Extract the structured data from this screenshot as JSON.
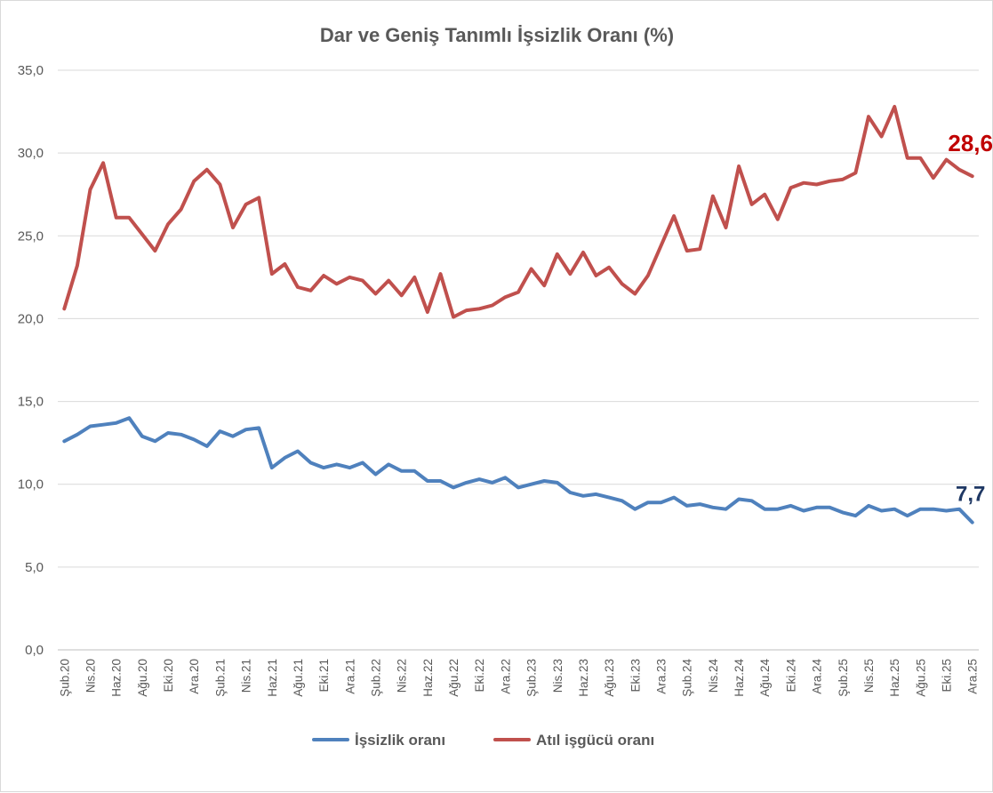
{
  "chart_data": {
    "type": "line",
    "title": "Dar ve Geniş Tanımlı İşsizlik Oranı (%)",
    "xlabel": "",
    "ylabel": "",
    "ylim": [
      0,
      35
    ],
    "yticks": [
      "0,0",
      "5,0",
      "10,0",
      "15,0",
      "20,0",
      "25,0",
      "30,0",
      "35,0"
    ],
    "grid": true,
    "legend_position": "bottom",
    "x": [
      "Şub.20",
      "Mar.20",
      "Nis.20",
      "May.20",
      "Haz.20",
      "Tem.20",
      "Ağu.20",
      "Eyl.20",
      "Eki.20",
      "Kas.20",
      "Ara.20",
      "Oca.21",
      "Şub.21",
      "Mar.21",
      "Nis.21",
      "May.21",
      "Haz.21",
      "Tem.21",
      "Ağu.21",
      "Eyl.21",
      "Eki.21",
      "Kas.21",
      "Ara.21",
      "Oca.22",
      "Şub.22",
      "Mar.22",
      "Nis.22",
      "May.22",
      "Haz.22",
      "Tem.22",
      "Ağu.22",
      "Eyl.22",
      "Eki.22",
      "Kas.22",
      "Ara.22",
      "Oca.23",
      "Şub.23",
      "Mar.23",
      "Nis.23",
      "May.23",
      "Haz.23",
      "Tem.23",
      "Ağu.23",
      "Eyl.23",
      "Eki.23",
      "Kas.23",
      "Ara.23",
      "Oca.24",
      "Şub.24",
      "Mar.24",
      "Nis.24",
      "May.24",
      "Haz.24",
      "Tem.24",
      "Ağu.24",
      "Eyl.24",
      "Eki.24",
      "Kas.24",
      "Ara.24",
      "Oca.25",
      "Şub.25",
      "Mar.25",
      "Nis.25",
      "May.25",
      "Haz.25",
      "Tem.25",
      "Ağu.25",
      "Eyl.25",
      "Eki.25",
      "Kas.25",
      "Ara.25"
    ],
    "tick_labels": [
      "Şub.20",
      "Nis.20",
      "Haz.20",
      "Ağu.20",
      "Eki.20",
      "Ara.20",
      "Şub.21",
      "Nis.21",
      "Haz.21",
      "Ağu.21",
      "Eki.21",
      "Ara.21",
      "Şub.22",
      "Nis.22",
      "Haz.22",
      "Ağu.22",
      "Eki.22",
      "Ara.22",
      "Şub.23",
      "Nis.23",
      "Haz.23",
      "Ağu.23",
      "Eki.23",
      "Ara.23",
      "Şub.24",
      "Nis.24",
      "Haz.24",
      "Ağu.24",
      "Eki.24",
      "Ara.24",
      "Şub.25",
      "Nis.25",
      "Haz.25",
      "Ağu.25",
      "Eki.25",
      "Ara.25"
    ],
    "series": [
      {
        "name": "İşsizlik oranı",
        "color": "#4f81bd",
        "end_label": "7,7",
        "end_label_color": "#1f3864",
        "values": [
          12.6,
          13.0,
          13.5,
          13.6,
          13.7,
          14.0,
          12.9,
          12.6,
          13.1,
          13.0,
          12.7,
          12.3,
          13.2,
          12.9,
          13.3,
          13.4,
          11.0,
          11.6,
          12.0,
          11.3,
          11.0,
          11.2,
          11.0,
          11.3,
          10.6,
          11.2,
          10.8,
          10.8,
          10.2,
          10.2,
          9.8,
          10.1,
          10.3,
          10.1,
          10.4,
          9.8,
          10.0,
          10.2,
          10.1,
          9.5,
          9.3,
          9.4,
          9.2,
          9.0,
          8.5,
          8.9,
          8.9,
          9.2,
          8.7,
          8.8,
          8.6,
          8.5,
          9.1,
          9.0,
          8.5,
          8.5,
          8.7,
          8.4,
          8.6,
          8.6,
          8.3,
          8.1,
          8.7,
          8.4,
          8.5,
          8.1,
          8.5,
          8.5,
          8.4,
          8.5,
          7.7
        ]
      },
      {
        "name": "Atıl işgücü oranı",
        "color": "#c0504d",
        "end_label": "28,6",
        "end_label_color": "#c00000",
        "values": [
          20.6,
          23.2,
          27.8,
          29.4,
          26.1,
          26.1,
          25.1,
          24.1,
          25.7,
          26.6,
          28.3,
          29.0,
          28.1,
          25.5,
          26.9,
          27.3,
          22.7,
          23.3,
          21.9,
          21.7,
          22.6,
          22.1,
          22.5,
          22.3,
          21.5,
          22.3,
          21.4,
          22.5,
          20.4,
          22.7,
          20.1,
          20.5,
          20.6,
          20.8,
          21.3,
          21.6,
          23.0,
          22.0,
          23.9,
          22.7,
          24.0,
          22.6,
          23.1,
          22.1,
          21.5,
          22.6,
          24.4,
          26.2,
          24.1,
          24.2,
          27.4,
          25.5,
          29.2,
          26.9,
          27.5,
          26.0,
          27.9,
          28.2,
          28.1,
          28.3,
          28.4,
          28.8,
          32.2,
          31.0,
          32.8,
          29.7,
          29.7,
          28.5,
          29.6,
          29.0,
          28.6
        ]
      }
    ]
  }
}
